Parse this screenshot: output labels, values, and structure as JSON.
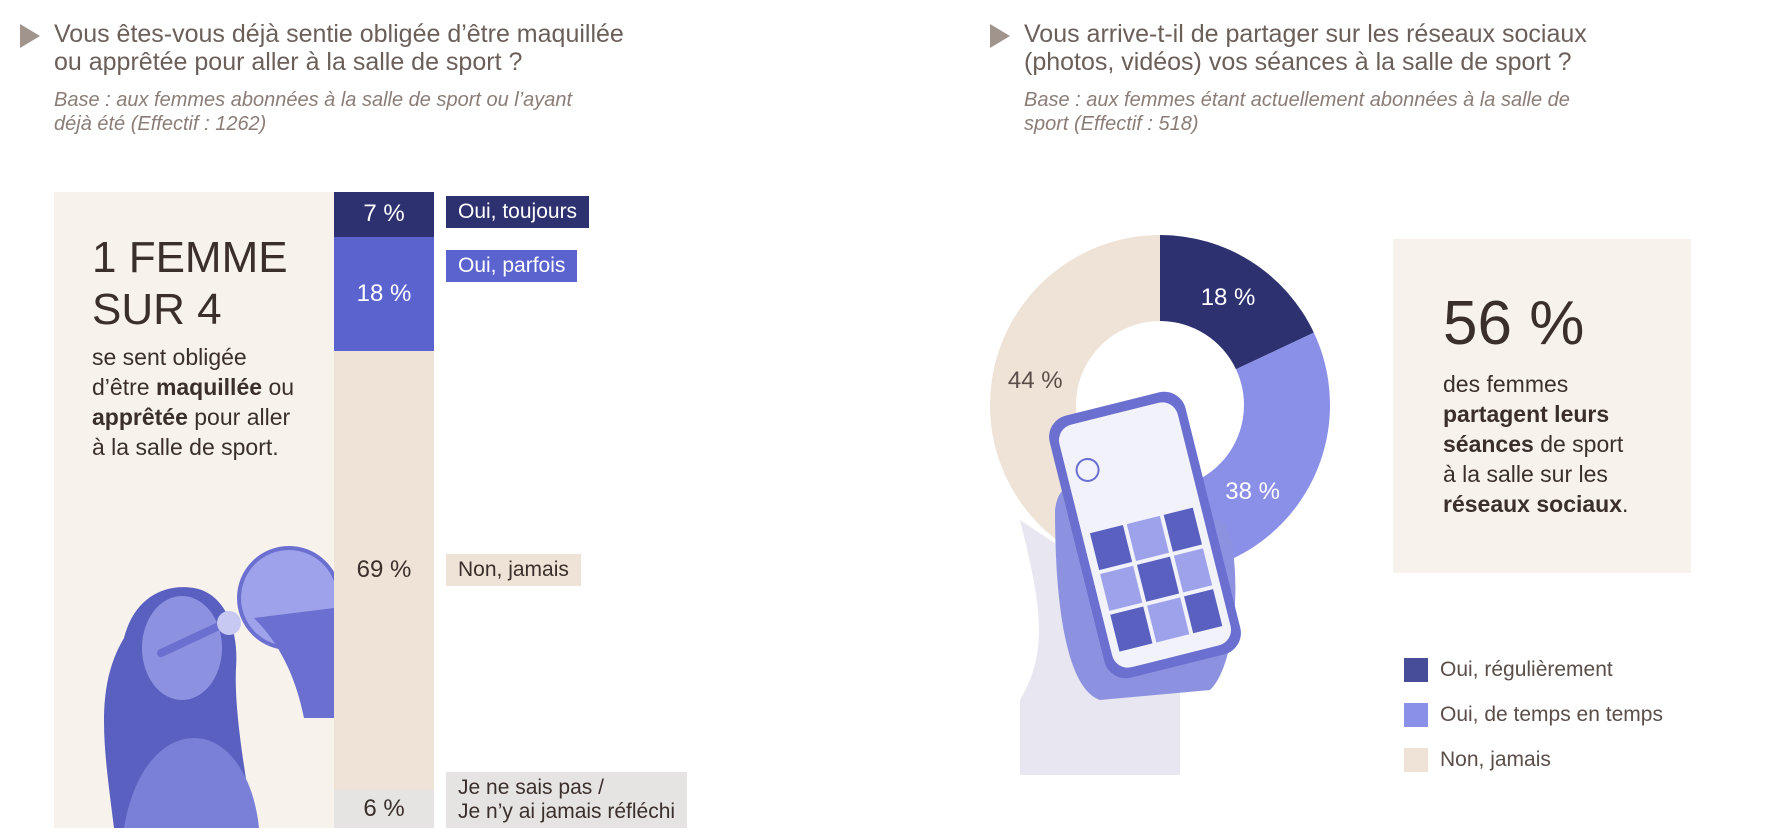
{
  "left": {
    "question": [
      "Vous êtes-vous déjà sentie obligée d’être maquillée",
      "ou apprêtée pour aller à la salle de sport ?"
    ],
    "base": [
      "Base : aux femmes abonnées à la salle de sport ou l’ayant",
      "déjà été (Effectif : 1262)"
    ],
    "headline": [
      "1 FEMME",
      "SUR 4"
    ],
    "desc_parts": [
      "se sent obligée",
      "d’être",
      "maquillée",
      "ou",
      "apprêtée",
      "pour aller",
      "à la salle de sport."
    ]
  },
  "right": {
    "question": [
      "Vous arrive-t-il de partager sur les réseaux sociaux",
      "(photos, vidéos) vos séances à la salle de sport ?"
    ],
    "base": [
      "Base : aux femmes étant actuellement abonnées à la salle de",
      "sport (Effectif : 518)"
    ],
    "stat_value": "56 %",
    "stat_parts": [
      "des femmes",
      "partagent leurs",
      "séances",
      "de sport",
      "à la salle sur les",
      "réseaux sociaux",
      "."
    ]
  },
  "colors": {
    "navy": "#2e3170",
    "blue": "#5b63cf",
    "periwinkle": "#8a8fe8",
    "beige": "#efe3d8",
    "grey": "#e6e4e3",
    "panel": "#f7f2ec",
    "photo_tint": "#6a6fd0"
  },
  "chart_data": [
    {
      "type": "bar",
      "stacked": true,
      "orientation": "vertical",
      "categories": [
        "Oui, toujours",
        "Oui, parfois",
        "Non, jamais",
        "Je ne sais pas / Je n’y ai jamais réfléchi"
      ],
      "values": [
        7,
        18,
        69,
        6
      ],
      "value_labels": [
        "7 %",
        "18 %",
        "69 %",
        "6 %"
      ],
      "category_label_lines": [
        [
          "Oui, toujours"
        ],
        [
          "Oui, parfois"
        ],
        [
          "Non, jamais"
        ],
        [
          "Je ne sais pas /",
          "Je n’y ai jamais réfléchi"
        ]
      ],
      "colors": [
        "#2e3170",
        "#5b63cf",
        "#efe3d8",
        "#e6e4e3"
      ],
      "value_label_colors": [
        "#ffffff",
        "#ffffff",
        "#3a2f2b",
        "#3a2f2b"
      ],
      "chip_text_colors": [
        "#ffffff",
        "#ffffff",
        "#3a2f2b",
        "#3a2f2b"
      ],
      "unit": "%"
    },
    {
      "type": "pie",
      "donut": true,
      "categories": [
        "Oui, régulièrement",
        "Oui, de temps en temps",
        "Non, jamais"
      ],
      "values": [
        18,
        38,
        44
      ],
      "value_labels": [
        "18 %",
        "38 %",
        "44 %"
      ],
      "colors": [
        "#2e3170",
        "#8a8fe8",
        "#efe3d8"
      ],
      "label_colors": [
        "#ffffff",
        "#ffffff",
        "#5a4e49"
      ],
      "legend_position": "bottom-right",
      "unit": "%"
    }
  ]
}
